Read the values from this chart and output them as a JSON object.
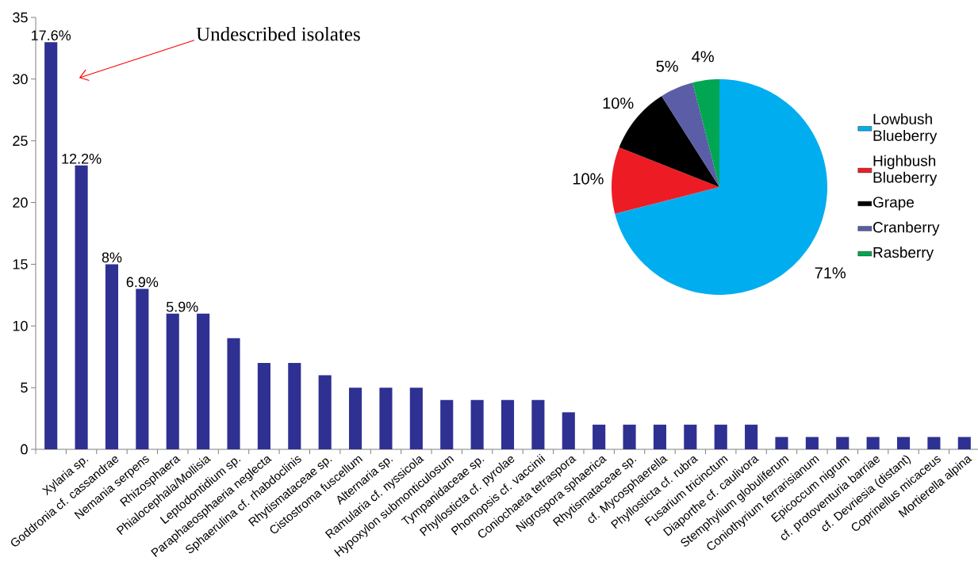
{
  "chart_data": [
    {
      "type": "bar",
      "categories": [
        null,
        "Xylaria sp.",
        "Goddronia cf. cassandrae",
        "Nemania serpens",
        "Rhizosphaera",
        "Phialocephala/Mollisia",
        "Leptodontidium sp.",
        "Paraphaeosphaeria neglecta",
        "Sphaerulina cf. rhabdoclinis",
        "Rhytismataceae sp.",
        "Cistostroma fuscellum",
        "Alternaria sp.",
        "Ramularia cf. nyssicola",
        "Hypoxylon submonticulosum",
        "Tympanidaceae sp.",
        "Phyllosticta cf. pyrolae",
        "Phomopsis cf. vaccinii",
        "Coniochaeta tetraspora",
        "Nigrospora sphaerica",
        "Rhytismataceae sp.",
        "cf. Mycosphaerella",
        "Phyllosticta cf. rubra",
        "Fusarium tricinctum",
        "Diaporthe cf. caulivora",
        "Stemphylium globuliferum",
        "Coniothyrium ferrarisianum",
        "Epicoccum nigrum",
        "cf. protoventuria barriae",
        "cf. Devriesia (distant)",
        "Coprinellus micaceus",
        "Mortierella alpina"
      ],
      "values": [
        33,
        23,
        15,
        13,
        11,
        11,
        9,
        7,
        7,
        6,
        5,
        5,
        5,
        4,
        4,
        4,
        4,
        3,
        2,
        2,
        2,
        2,
        2,
        2,
        1,
        1,
        1,
        1,
        1,
        1,
        1
      ],
      "color": "#2e3192",
      "ylim": [
        0,
        35
      ],
      "yticks": [
        0,
        5,
        10,
        15,
        20,
        25,
        30,
        35
      ],
      "grid": false,
      "legend": false,
      "annotations": [
        "Undescribed isolates",
        {
          "text": "17.6%",
          "y": 33
        },
        {
          "text": "12.2%",
          "x": "Xylaria sp.",
          "y": 23
        },
        {
          "text": "8%",
          "x": "Goddronia cf. cassandrae",
          "y": 15
        },
        {
          "text": "6.9%",
          "x": "Nemania serpens",
          "y": 13
        },
        {
          "text": "5.9%",
          "x": "Rhizosphaera",
          "y": 11
        }
      ]
    },
    {
      "type": "pie",
      "categories": [
        "Lowbush Blueberry",
        "Highbush Blueberry",
        "Grape",
        "Cranberry",
        "Rasberry"
      ],
      "values": [
        71,
        10,
        10,
        5,
        4
      ],
      "value_labels": [
        "71%",
        "10%",
        "10%",
        "5%",
        "4%"
      ],
      "colors": [
        "#00aeef",
        "#ed1c24",
        "#000000",
        "#5b5ea6",
        "#00a651"
      ],
      "legend": "right"
    }
  ]
}
